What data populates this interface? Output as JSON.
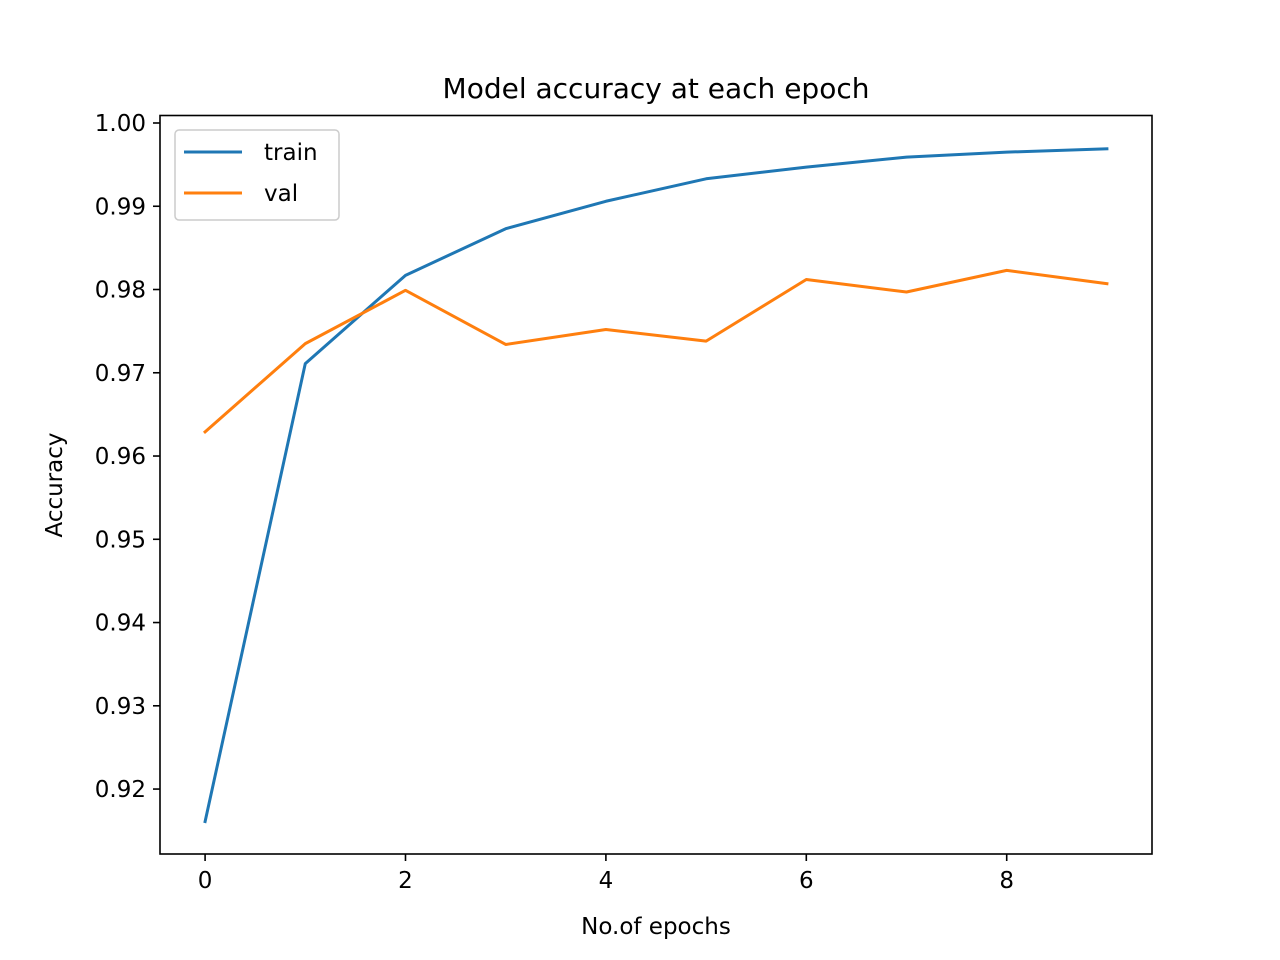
{
  "chart_data": {
    "type": "line",
    "title": "Model accuracy at each epoch",
    "xlabel": "No.of epochs",
    "ylabel": "Accuracy",
    "x": [
      0,
      1,
      2,
      3,
      4,
      5,
      6,
      7,
      8,
      9
    ],
    "xlim": [
      -0.45,
      9.45
    ],
    "ylim": [
      0.9122,
      1.0009
    ],
    "xticks": [
      0,
      2,
      4,
      6,
      8
    ],
    "yticks": [
      0.92,
      0.93,
      0.94,
      0.95,
      0.96,
      0.97,
      0.98,
      0.99,
      1.0
    ],
    "ytick_labels": [
      "0.92",
      "0.93",
      "0.94",
      "0.95",
      "0.96",
      "0.97",
      "0.98",
      "0.99",
      "1.00"
    ],
    "grid": false,
    "legend_position": "top-left",
    "series": [
      {
        "name": "train",
        "color": "#1f77b4",
        "values": [
          0.9161,
          0.9711,
          0.9817,
          0.9873,
          0.9906,
          0.9933,
          0.9947,
          0.9959,
          0.9965,
          0.9969
        ]
      },
      {
        "name": "val",
        "color": "#ff7f0e",
        "values": [
          0.9629,
          0.9735,
          0.9799,
          0.9734,
          0.9752,
          0.9738,
          0.9812,
          0.9797,
          0.9823,
          0.9807
        ]
      }
    ]
  }
}
